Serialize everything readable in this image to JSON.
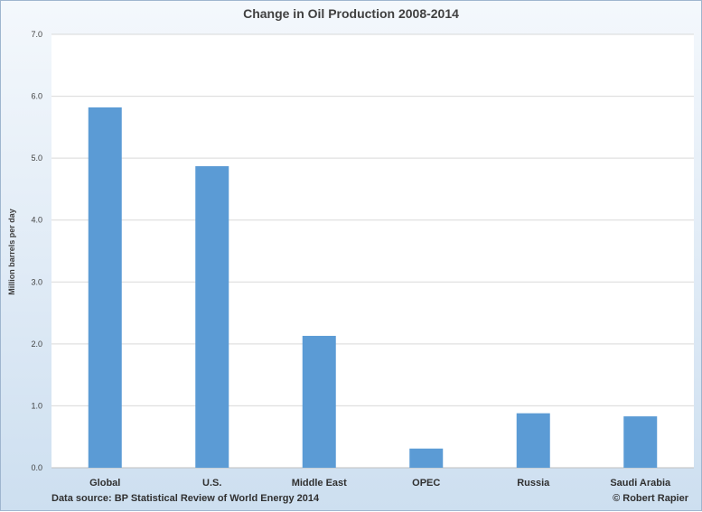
{
  "chart_data": {
    "type": "bar",
    "title": "Change in Oil Production 2008-2014",
    "ylabel": "Million barrels per day",
    "xlabel": "",
    "categories": [
      "Global",
      "U.S.",
      "Middle East",
      "OPEC",
      "Russia",
      "Saudi Arabia"
    ],
    "values": [
      5.82,
      4.87,
      2.13,
      0.31,
      0.88,
      0.83
    ],
    "ylim": [
      0,
      7
    ],
    "yticks": [
      "0.0",
      "1.0",
      "2.0",
      "3.0",
      "4.0",
      "5.0",
      "6.0",
      "7.0"
    ],
    "grid": true,
    "legend": "none",
    "bar_color": "#5b9bd5"
  },
  "footer": {
    "source": "Data source: BP Statistical Review of World Energy 2014",
    "copyright": "© Robert Rapier"
  }
}
